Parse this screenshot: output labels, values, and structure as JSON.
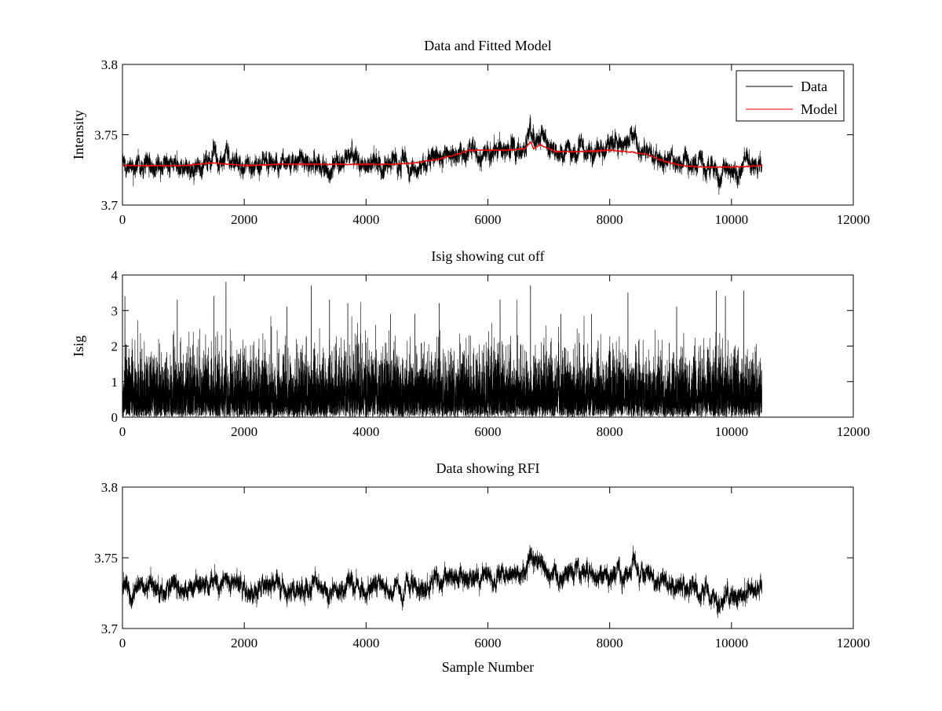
{
  "figure": {
    "background": "#ffffff"
  },
  "chart_data": [
    {
      "type": "line",
      "title": "Data and Fitted Model",
      "xlabel": "",
      "ylabel": "Intensity",
      "xlim": [
        0,
        12000
      ],
      "ylim": [
        3.7,
        3.8
      ],
      "xticks": [
        0,
        2000,
        4000,
        6000,
        8000,
        10000,
        12000
      ],
      "yticks": [
        3.7,
        3.75,
        3.8
      ],
      "xtick_labels": [
        "0",
        "2000",
        "4000",
        "6000",
        "8000",
        "10000",
        "12000"
      ],
      "ytick_labels": [
        "3.7",
        "3.75",
        "3.8"
      ],
      "grid": false,
      "legend_position": "top-right",
      "series": [
        {
          "name": "Data",
          "color": "#000000",
          "style": "noisy",
          "x_range": [
            0,
            10500
          ],
          "n_points": 10500,
          "noise_halfwidth": 0.006,
          "spikes": [
            [
              1520,
              0.008
            ],
            [
              1700,
              0.008
            ],
            [
              3400,
              -0.008
            ],
            [
              3700,
              0.009
            ],
            [
              6700,
              0.012
            ],
            [
              6880,
              0.009
            ],
            [
              8420,
              0.008
            ],
            [
              9800,
              -0.01
            ],
            [
              10100,
              -0.008
            ]
          ],
          "baseline": [
            [
              0,
              3.729
            ],
            [
              1000,
              3.728
            ],
            [
              1500,
              3.731
            ],
            [
              2000,
              3.729
            ],
            [
              3000,
              3.729
            ],
            [
              3500,
              3.728
            ],
            [
              4000,
              3.73
            ],
            [
              4800,
              3.729
            ],
            [
              5300,
              3.733
            ],
            [
              5700,
              3.738
            ],
            [
              6300,
              3.739
            ],
            [
              6600,
              3.74
            ],
            [
              6700,
              3.745
            ],
            [
              6900,
              3.744
            ],
            [
              7100,
              3.739
            ],
            [
              7800,
              3.738
            ],
            [
              8400,
              3.742
            ],
            [
              8600,
              3.737
            ],
            [
              9000,
              3.729
            ],
            [
              9500,
              3.726
            ],
            [
              9900,
              3.725
            ],
            [
              10200,
              3.727
            ],
            [
              10500,
              3.727
            ]
          ]
        },
        {
          "name": "Model",
          "color": "#ff0000",
          "style": "smooth",
          "x_range": [
            0,
            10500
          ],
          "model_points": [
            [
              0,
              3.728
            ],
            [
              500,
              3.728
            ],
            [
              1000,
              3.728
            ],
            [
              1500,
              3.73
            ],
            [
              2000,
              3.728
            ],
            [
              2500,
              3.729
            ],
            [
              3000,
              3.729
            ],
            [
              3500,
              3.729
            ],
            [
              4000,
              3.729
            ],
            [
              4500,
              3.729
            ],
            [
              4800,
              3.73
            ],
            [
              5100,
              3.732
            ],
            [
              5400,
              3.735
            ],
            [
              5700,
              3.739
            ],
            [
              6000,
              3.739
            ],
            [
              6300,
              3.739
            ],
            [
              6600,
              3.74
            ],
            [
              6700,
              3.745
            ],
            [
              6750,
              3.74
            ],
            [
              6850,
              3.743
            ],
            [
              6950,
              3.741
            ],
            [
              7100,
              3.738
            ],
            [
              7500,
              3.738
            ],
            [
              8000,
              3.739
            ],
            [
              8300,
              3.738
            ],
            [
              8600,
              3.736
            ],
            [
              8900,
              3.731
            ],
            [
              9200,
              3.728
            ],
            [
              9500,
              3.727
            ],
            [
              10000,
              3.727
            ],
            [
              10500,
              3.728
            ]
          ]
        }
      ]
    },
    {
      "type": "line",
      "title": "Isig showing cut off",
      "xlabel": "",
      "ylabel": "Isig",
      "xlim": [
        0,
        12000
      ],
      "ylim": [
        0,
        4
      ],
      "xticks": [
        0,
        2000,
        4000,
        6000,
        8000,
        10000,
        12000
      ],
      "yticks": [
        0,
        1,
        2,
        3,
        4
      ],
      "xtick_labels": [
        "0",
        "2000",
        "4000",
        "6000",
        "8000",
        "10000",
        "12000"
      ],
      "ytick_labels": [
        "0",
        "1",
        "2",
        "3",
        "4"
      ],
      "grid": false,
      "legend_position": "none",
      "series": [
        {
          "name": "",
          "color": "#000000",
          "style": "abs-noise",
          "x_range": [
            0,
            10500
          ],
          "n_points": 10500,
          "spikes": [
            [
              40,
              3.4
            ],
            [
              900,
              3.3
            ],
            [
              1500,
              3.4
            ],
            [
              1700,
              3.8
            ],
            [
              2700,
              3.1
            ],
            [
              3100,
              3.7
            ],
            [
              3400,
              3.3
            ],
            [
              3700,
              3.2
            ],
            [
              4400,
              2.9
            ],
            [
              4800,
              2.9
            ],
            [
              5200,
              3.2
            ],
            [
              6200,
              3.3
            ],
            [
              6700,
              3.7
            ],
            [
              7200,
              2.9
            ],
            [
              7700,
              2.9
            ],
            [
              8300,
              3.5
            ],
            [
              9100,
              3.1
            ],
            [
              9750,
              3.55
            ],
            [
              9900,
              3.4
            ],
            [
              10200,
              3.55
            ]
          ]
        }
      ]
    },
    {
      "type": "line",
      "title": "Data showing RFI",
      "xlabel": "Sample Number",
      "ylabel": "",
      "xlim": [
        0,
        12000
      ],
      "ylim": [
        3.7,
        3.8
      ],
      "xticks": [
        0,
        2000,
        4000,
        6000,
        8000,
        10000,
        12000
      ],
      "yticks": [
        3.7,
        3.75,
        3.8
      ],
      "xtick_labels": [
        "0",
        "2000",
        "4000",
        "6000",
        "8000",
        "10000",
        "12000"
      ],
      "ytick_labels": [
        "3.7",
        "3.75",
        "3.8"
      ],
      "grid": false,
      "legend_position": "none",
      "series": [
        {
          "name": "",
          "color": "#000000",
          "style": "noisy",
          "x_range": [
            0,
            10500
          ],
          "n_points": 10500,
          "noise_halfwidth": 0.006,
          "spikes": [
            [
              1520,
              0.008
            ],
            [
              1700,
              0.008
            ],
            [
              3400,
              -0.008
            ],
            [
              3700,
              0.009
            ],
            [
              6700,
              0.012
            ],
            [
              6880,
              0.009
            ],
            [
              8420,
              0.008
            ],
            [
              9800,
              -0.01
            ],
            [
              10100,
              -0.008
            ]
          ],
          "baseline": [
            [
              0,
              3.729
            ],
            [
              1000,
              3.728
            ],
            [
              1500,
              3.731
            ],
            [
              2000,
              3.729
            ],
            [
              3000,
              3.729
            ],
            [
              3500,
              3.728
            ],
            [
              4000,
              3.73
            ],
            [
              4800,
              3.729
            ],
            [
              5300,
              3.733
            ],
            [
              5700,
              3.738
            ],
            [
              6300,
              3.739
            ],
            [
              6600,
              3.74
            ],
            [
              6700,
              3.745
            ],
            [
              6900,
              3.744
            ],
            [
              7100,
              3.739
            ],
            [
              7800,
              3.738
            ],
            [
              8400,
              3.742
            ],
            [
              8600,
              3.737
            ],
            [
              9000,
              3.729
            ],
            [
              9500,
              3.726
            ],
            [
              9900,
              3.725
            ],
            [
              10200,
              3.727
            ],
            [
              10500,
              3.727
            ]
          ]
        }
      ]
    }
  ]
}
